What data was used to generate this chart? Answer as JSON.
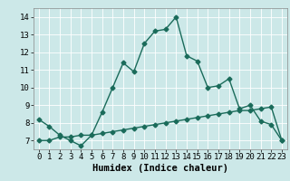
{
  "xlabel": "Humidex (Indice chaleur)",
  "background_color": "#cce8e8",
  "grid_color": "#ffffff",
  "line_color": "#1a6b5a",
  "xlim": [
    -0.5,
    23.5
  ],
  "ylim": [
    6.5,
    14.5
  ],
  "xticks": [
    0,
    1,
    2,
    3,
    4,
    5,
    6,
    7,
    8,
    9,
    10,
    11,
    12,
    13,
    14,
    15,
    16,
    17,
    18,
    19,
    20,
    21,
    22,
    23
  ],
  "yticks": [
    7,
    8,
    9,
    10,
    11,
    12,
    13,
    14
  ],
  "series1_x": [
    0,
    1,
    2,
    3,
    4,
    5,
    6,
    7,
    8,
    9,
    10,
    11,
    12,
    13,
    14,
    15,
    16,
    17,
    18,
    19,
    20,
    21,
    22,
    23
  ],
  "series1_y": [
    8.2,
    7.8,
    7.3,
    7.0,
    6.7,
    7.3,
    8.6,
    10.0,
    11.4,
    10.9,
    12.5,
    13.2,
    13.3,
    14.0,
    11.8,
    11.5,
    10.0,
    10.1,
    10.5,
    8.8,
    9.0,
    8.1,
    7.9,
    7.0
  ],
  "series2_x": [
    0,
    1,
    2,
    3,
    4,
    5,
    6,
    7,
    8,
    9,
    10,
    11,
    12,
    13,
    14,
    15,
    16,
    17,
    18,
    19,
    20,
    21,
    22,
    23
  ],
  "series2_y": [
    7.0,
    7.0,
    7.2,
    7.2,
    7.3,
    7.3,
    7.4,
    7.5,
    7.6,
    7.7,
    7.8,
    7.9,
    8.0,
    8.1,
    8.2,
    8.3,
    8.4,
    8.5,
    8.6,
    8.7,
    8.7,
    8.8,
    8.9,
    7.0
  ],
  "marker": "D",
  "markersize": 2.5,
  "linewidth": 1.0,
  "xlabel_fontsize": 7.5,
  "tick_fontsize": 6.5
}
